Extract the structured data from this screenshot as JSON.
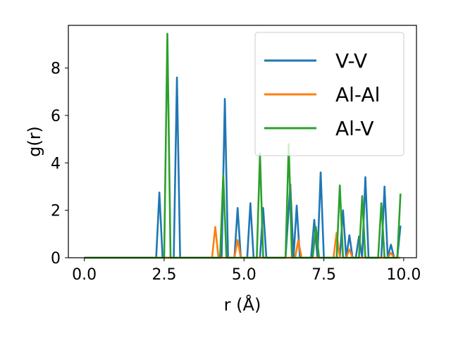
{
  "chart_data": {
    "type": "line",
    "xlabel": "r (Å)",
    "ylabel": "g(r)",
    "xlim": [
      -0.5,
      10.4
    ],
    "ylim": [
      0,
      9.8
    ],
    "xticks": [
      0.0,
      2.5,
      5.0,
      7.5,
      10.0
    ],
    "xtick_labels": [
      "0.0",
      "2.5",
      "5.0",
      "7.5",
      "10.0"
    ],
    "yticks": [
      0,
      2,
      4,
      6,
      8
    ],
    "ytick_labels": [
      "0",
      "2",
      "4",
      "6",
      "8"
    ],
    "grid": false,
    "legend_position": "top-right",
    "series": [
      {
        "name": "V-V",
        "color": "#1f77b4",
        "x": [
          0.0,
          2.25,
          2.35,
          2.45,
          2.55,
          2.8,
          2.9,
          3.0,
          4.3,
          4.4,
          4.5,
          4.7,
          4.8,
          4.9,
          5.1,
          5.2,
          5.3,
          5.5,
          5.6,
          5.7,
          6.3,
          6.45,
          6.55,
          6.65,
          6.75,
          6.85,
          7.1,
          7.2,
          7.3,
          7.4,
          7.5,
          8.0,
          8.1,
          8.2,
          8.3,
          8.4,
          8.5,
          8.6,
          8.7,
          8.8,
          8.9,
          9.3,
          9.4,
          9.5,
          9.6,
          9.7,
          9.8,
          9.9
        ],
        "y": [
          0,
          0,
          2.75,
          0,
          0,
          0,
          7.6,
          0,
          0,
          6.7,
          0,
          0,
          2.1,
          0,
          0,
          2.3,
          0,
          0,
          2.1,
          0,
          0,
          3.1,
          0,
          2.2,
          0,
          0,
          0,
          1.6,
          0,
          3.6,
          0,
          0,
          2.0,
          0,
          0.95,
          0,
          0,
          0.9,
          0,
          3.4,
          0,
          0,
          3.0,
          0,
          0.55,
          0,
          0,
          1.35
        ]
      },
      {
        "name": "Al-Al",
        "color": "#ff7f0e",
        "x": [
          0.0,
          4.0,
          4.1,
          4.2,
          4.7,
          4.8,
          4.9,
          6.6,
          6.7,
          6.8,
          7.8,
          7.9,
          8.0,
          8.2,
          8.3,
          8.4,
          9.5,
          9.6,
          9.7,
          9.9
        ],
        "y": [
          0,
          0,
          1.3,
          0,
          0,
          0.75,
          0,
          0,
          0.75,
          0,
          0,
          1.05,
          0,
          0,
          0.35,
          0,
          0,
          0.2,
          0,
          0
        ]
      },
      {
        "name": "Al-V",
        "color": "#2ca02c",
        "x": [
          0.0,
          2.5,
          2.6,
          2.7,
          4.25,
          4.35,
          4.45,
          5.4,
          5.5,
          5.6,
          6.3,
          6.4,
          6.5,
          7.15,
          7.25,
          7.35,
          7.9,
          8.0,
          8.1,
          8.6,
          8.7,
          8.8,
          9.2,
          9.3,
          9.4,
          9.8,
          9.9
        ],
        "y": [
          0,
          0,
          9.45,
          0,
          0,
          3.5,
          0,
          0,
          4.4,
          0,
          0,
          4.8,
          0,
          0,
          1.3,
          0,
          0,
          3.05,
          0,
          0,
          2.6,
          0,
          0,
          2.3,
          0,
          0,
          2.7
        ]
      }
    ]
  }
}
